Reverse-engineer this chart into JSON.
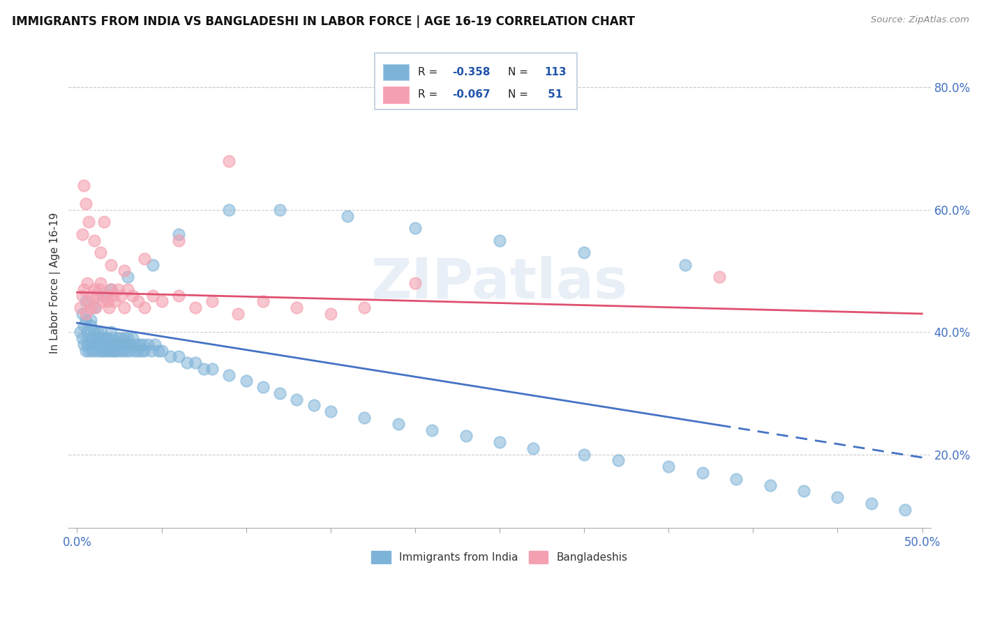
{
  "title": "IMMIGRANTS FROM INDIA VS BANGLADESHI IN LABOR FORCE | AGE 16-19 CORRELATION CHART",
  "source_text": "Source: ZipAtlas.com",
  "ylabel": "In Labor Force | Age 16-19",
  "xlim": [
    -0.005,
    0.505
  ],
  "ylim": [
    0.08,
    0.88
  ],
  "xticks": [
    0.0,
    0.05,
    0.1,
    0.15,
    0.2,
    0.25,
    0.3,
    0.35,
    0.4,
    0.45,
    0.5
  ],
  "yticks": [
    0.2,
    0.4,
    0.6,
    0.8
  ],
  "yticklabels": [
    "20.0%",
    "40.0%",
    "60.0%",
    "80.0%"
  ],
  "india_color": "#7EB3D8",
  "bangladesh_color": "#F4A0B0",
  "trend_india_color": "#4472C4",
  "trend_bangladesh_color": "#E05070",
  "watermark": "ZIPatlas",
  "india_trend_y_start": 0.415,
  "india_trend_y_end": 0.195,
  "india_trend_solid_end_x": 0.38,
  "bangladesh_trend_y_start": 0.465,
  "bangladesh_trend_y_end": 0.43,
  "india_scatter_x": [
    0.002,
    0.003,
    0.004,
    0.004,
    0.005,
    0.005,
    0.006,
    0.006,
    0.007,
    0.007,
    0.008,
    0.008,
    0.009,
    0.009,
    0.01,
    0.01,
    0.011,
    0.011,
    0.012,
    0.012,
    0.013,
    0.013,
    0.014,
    0.014,
    0.015,
    0.015,
    0.016,
    0.016,
    0.017,
    0.017,
    0.018,
    0.018,
    0.019,
    0.019,
    0.02,
    0.02,
    0.021,
    0.021,
    0.022,
    0.022,
    0.023,
    0.023,
    0.024,
    0.025,
    0.025,
    0.026,
    0.027,
    0.027,
    0.028,
    0.028,
    0.029,
    0.03,
    0.03,
    0.031,
    0.032,
    0.033,
    0.034,
    0.035,
    0.036,
    0.037,
    0.038,
    0.039,
    0.04,
    0.042,
    0.044,
    0.046,
    0.048,
    0.05,
    0.055,
    0.06,
    0.065,
    0.07,
    0.075,
    0.08,
    0.09,
    0.1,
    0.11,
    0.12,
    0.13,
    0.14,
    0.15,
    0.17,
    0.19,
    0.21,
    0.23,
    0.25,
    0.27,
    0.3,
    0.32,
    0.35,
    0.37,
    0.39,
    0.41,
    0.43,
    0.45,
    0.47,
    0.49,
    0.003,
    0.005,
    0.008,
    0.01,
    0.015,
    0.02,
    0.03,
    0.045,
    0.06,
    0.09,
    0.12,
    0.16,
    0.2,
    0.25,
    0.3,
    0.36
  ],
  "india_scatter_y": [
    0.4,
    0.39,
    0.38,
    0.41,
    0.37,
    0.42,
    0.38,
    0.4,
    0.37,
    0.39,
    0.38,
    0.41,
    0.39,
    0.37,
    0.38,
    0.4,
    0.39,
    0.37,
    0.38,
    0.4,
    0.37,
    0.39,
    0.38,
    0.4,
    0.37,
    0.39,
    0.38,
    0.37,
    0.39,
    0.38,
    0.37,
    0.39,
    0.38,
    0.37,
    0.38,
    0.4,
    0.37,
    0.39,
    0.38,
    0.37,
    0.38,
    0.37,
    0.39,
    0.38,
    0.37,
    0.39,
    0.38,
    0.37,
    0.39,
    0.38,
    0.37,
    0.38,
    0.39,
    0.37,
    0.38,
    0.39,
    0.37,
    0.38,
    0.37,
    0.38,
    0.37,
    0.38,
    0.37,
    0.38,
    0.37,
    0.38,
    0.37,
    0.37,
    0.36,
    0.36,
    0.35,
    0.35,
    0.34,
    0.34,
    0.33,
    0.32,
    0.31,
    0.3,
    0.29,
    0.28,
    0.27,
    0.26,
    0.25,
    0.24,
    0.23,
    0.22,
    0.21,
    0.2,
    0.19,
    0.18,
    0.17,
    0.16,
    0.15,
    0.14,
    0.13,
    0.12,
    0.11,
    0.43,
    0.45,
    0.42,
    0.44,
    0.46,
    0.47,
    0.49,
    0.51,
    0.56,
    0.6,
    0.6,
    0.59,
    0.57,
    0.55,
    0.53,
    0.51
  ],
  "bangladesh_scatter_x": [
    0.002,
    0.003,
    0.004,
    0.005,
    0.006,
    0.007,
    0.008,
    0.009,
    0.01,
    0.011,
    0.012,
    0.013,
    0.014,
    0.015,
    0.016,
    0.017,
    0.018,
    0.019,
    0.02,
    0.021,
    0.022,
    0.024,
    0.026,
    0.028,
    0.03,
    0.033,
    0.036,
    0.04,
    0.045,
    0.05,
    0.06,
    0.07,
    0.08,
    0.095,
    0.11,
    0.13,
    0.15,
    0.17,
    0.2,
    0.003,
    0.004,
    0.005,
    0.007,
    0.01,
    0.014,
    0.02,
    0.028,
    0.04,
    0.06,
    0.09,
    0.38
  ],
  "bangladesh_scatter_y": [
    0.44,
    0.46,
    0.47,
    0.43,
    0.48,
    0.45,
    0.44,
    0.46,
    0.47,
    0.44,
    0.46,
    0.47,
    0.48,
    0.45,
    0.58,
    0.46,
    0.45,
    0.44,
    0.47,
    0.46,
    0.45,
    0.47,
    0.46,
    0.44,
    0.47,
    0.46,
    0.45,
    0.44,
    0.46,
    0.45,
    0.46,
    0.44,
    0.45,
    0.43,
    0.45,
    0.44,
    0.43,
    0.44,
    0.48,
    0.56,
    0.64,
    0.61,
    0.58,
    0.55,
    0.53,
    0.51,
    0.5,
    0.52,
    0.55,
    0.68,
    0.49
  ]
}
